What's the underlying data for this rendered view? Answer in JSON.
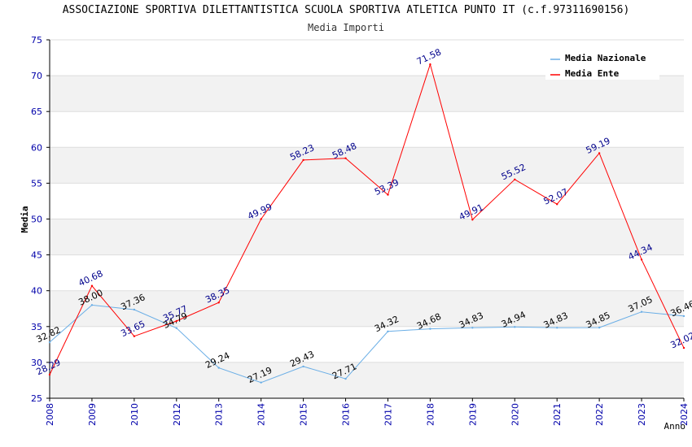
{
  "chart_data": {
    "type": "line",
    "title": "ASSOCIAZIONE SPORTIVA DILETTANTISTICA SCUOLA SPORTIVA ATLETICA PUNTO IT (c.f.97311690156)",
    "subtitle": "Media Importi",
    "xlabel": "Anno",
    "ylabel": "Media",
    "ylim": [
      25,
      75
    ],
    "yticks": [
      "25",
      "30",
      "35",
      "40",
      "45",
      "50",
      "55",
      "60",
      "65",
      "70",
      "75"
    ],
    "categories": [
      "2008",
      "2009",
      "2010",
      "2012",
      "2013",
      "2014",
      "2015",
      "2016",
      "2017",
      "2018",
      "2019",
      "2020",
      "2021",
      "2022",
      "2023",
      "2024"
    ],
    "series": [
      {
        "name": "Media Nazionale",
        "color": "#6aaee6",
        "label_color": "#000000",
        "values": [
          32.82,
          38.0,
          37.36,
          34.79,
          29.24,
          27.19,
          29.43,
          27.71,
          34.32,
          34.68,
          34.83,
          34.94,
          34.83,
          34.85,
          37.05,
          36.46
        ],
        "labels": [
          "32.82",
          "38.00",
          "37.36",
          "34.79",
          "29.24",
          "27.19",
          "29.43",
          "27.71",
          "34.32",
          "34.68",
          "34.83",
          "34.94",
          "34.83",
          "34.85",
          "37.05",
          "36.46"
        ]
      },
      {
        "name": "Media Ente",
        "color": "#ff0000",
        "label_color": "#00008b",
        "values": [
          28.29,
          40.68,
          33.65,
          35.77,
          38.35,
          49.99,
          58.23,
          58.48,
          53.39,
          71.58,
          49.91,
          55.52,
          52.07,
          59.19,
          44.34,
          32.02
        ],
        "labels": [
          "28.29",
          "40.68",
          "33.65",
          "35.77",
          "38.35",
          "49.99",
          "58.23",
          "58.48",
          "53.39",
          "71.58",
          "49.91",
          "55.52",
          "52.07",
          "59.19",
          "44.34",
          "32.02"
        ]
      }
    ],
    "legend_position": "top-right",
    "grid": true
  }
}
